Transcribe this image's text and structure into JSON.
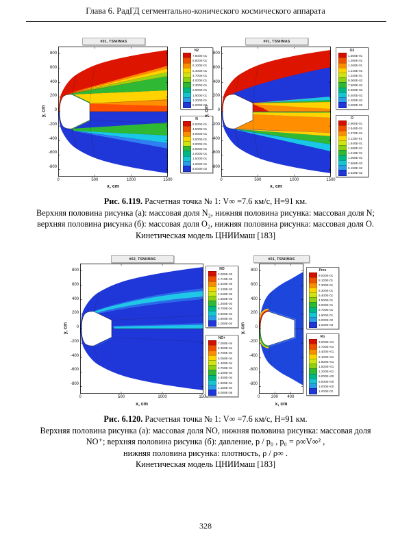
{
  "page": {
    "header_title": "Глава 6. РадГД сегментально-конического космического аппарата",
    "page_number": "328"
  },
  "palette": {
    "rainbow": [
      "#d50f00",
      "#f04f00",
      "#fb8e00",
      "#ffd300",
      "#cfe412",
      "#8ed112",
      "#2fb834",
      "#00b884",
      "#16c6cf",
      "#2a9fe8",
      "#1f36d8"
    ]
  },
  "figures": [
    {
      "caption_label": "Рис. 6.119.",
      "caption_intro": " Расчетная точка № 1: V∞ =7.6 км/с, H=91 км.",
      "caption_body": "Верхняя половина рисунка (а): массовая доля N₂, нижняя половина рисунка: массовая доля N; верхняя половина рисунка (б): массовая доля O₂, нижняя половина рисунка: массовая доля O. Кинетическая модель ЦНИИмаш [183]"
    },
    {
      "caption_label": "Рис. 6.120.",
      "caption_intro": " Расчетная точка № 1: V∞ =7.6 км/с, H=91 км.",
      "caption_body": "Верхняя половина рисунка (а): массовая доля NO, нижняя половина рисунка: массовая доля NO⁺; верхняя половина рисунка (б): давление,  p / p₀ ,  p₀ = ρ∞V∞² ,",
      "caption_body2": "нижняя половина рисунка: плотность,  ρ / ρ∞ .",
      "caption_model": "Кинетическая модель ЦНИИмаш [183]"
    }
  ],
  "chart_data": [
    {
      "type": "heatmap",
      "title": "#01, TSNIIMAS",
      "xlabel": "x, cm",
      "ylabel": "y, cm",
      "xlim": [
        0,
        1500
      ],
      "ylim": [
        -900,
        900
      ],
      "xticks": [
        "0",
        "500",
        "1000",
        "1500"
      ],
      "yticks": [
        "800",
        "600",
        "400",
        "200",
        "0",
        "-200",
        "-400",
        "-600",
        "-800"
      ],
      "upper_quantity": "массовая доля N2",
      "lower_quantity": "массовая доля N",
      "legends": [
        {
          "name": "N2",
          "values": [
            "7.500E-01",
            "6.800E-01",
            "6.100E-01",
            "5.400E-01",
            "4.700E-01",
            "4.000E-01",
            "3.300E-01",
            "2.600E-01",
            "1.900E-01",
            "1.200E-01",
            "5.000E-02"
          ]
        },
        {
          "name": "N",
          "values": [
            "5.000E-01",
            "4.500E-01",
            "4.000E-01",
            "3.500E-01",
            "3.000E-01",
            "2.500E-01",
            "2.000E-01",
            "1.500E-01",
            "1.000E-01",
            "5.000E-02"
          ]
        }
      ]
    },
    {
      "type": "heatmap",
      "title": "#01, TSNIIMAS",
      "xlabel": "x, cm",
      "ylabel": "y, cm",
      "xlim": [
        0,
        1500
      ],
      "ylim": [
        -900,
        900
      ],
      "xticks": [
        "0",
        "500",
        "1000",
        "1500"
      ],
      "yticks": [
        "800",
        "600",
        "400",
        "200",
        "0",
        "-200",
        "-400",
        "-600",
        "-800"
      ],
      "upper_quantity": "массовая доля O2",
      "lower_quantity": "массовая доля O",
      "legends": [
        {
          "name": "O2",
          "values": [
            "1.500E-01",
            "1.380E-01",
            "1.260E-01",
            "1.140E-01",
            "1.020E-01",
            "9.000E-02",
            "7.800E-02",
            "6.600E-02",
            "5.400E-02",
            "4.200E-02",
            "3.000E-02"
          ]
        },
        {
          "name": "O",
          "values": [
            "2.900E-01",
            "2.640E-01",
            "2.370E-01",
            "2.110E-01",
            "1.840E-01",
            "1.580E-01",
            "1.310E-01",
            "1.050E-01",
            "7.860E-02",
            "5.190E-02",
            "2.520E-02"
          ]
        }
      ]
    },
    {
      "type": "heatmap",
      "title": "#02, TSNIIMAS",
      "xlabel": "x, cm",
      "ylabel": "y, cm",
      "xlim": [
        0,
        1500
      ],
      "ylim": [
        -900,
        900
      ],
      "xticks": [
        "0",
        "500",
        "1000",
        "1500"
      ],
      "yticks": [
        "800",
        "600",
        "400",
        "200",
        "0",
        "-200",
        "-400",
        "-600",
        "-800"
      ],
      "upper_quantity": "массовая доля NO",
      "lower_quantity": "массовая доля NO+",
      "legends": [
        {
          "name": "NO",
          "values": [
            "3.000E-03",
            "2.710E-03",
            "2.420E-03",
            "2.130E-03",
            "1.840E-03",
            "1.550E-03",
            "1.260E-03",
            "9.700E-04",
            "6.800E-04",
            "3.900E-04",
            "1.000E-04"
          ]
        },
        {
          "name": "NO+",
          "values": [
            "7.000E-04",
            "6.350E-04",
            "5.700E-04",
            "5.050E-04",
            "4.400E-04",
            "3.750E-04",
            "3.100E-04",
            "2.450E-04",
            "1.800E-04",
            "1.150E-04",
            "5.000E-05"
          ]
        }
      ]
    },
    {
      "type": "heatmap",
      "title": "#01, TSNIIMAS",
      "xlabel": "x, cm",
      "ylabel": "y, cm",
      "xlim": [
        0,
        560
      ],
      "ylim": [
        -900,
        900
      ],
      "xticks": [
        "0",
        "200",
        "400"
      ],
      "yticks": [
        "800",
        "600",
        "400",
        "200",
        "0",
        "-200",
        "-400",
        "-600",
        "-800"
      ],
      "upper_quantity": "давление p/p0",
      "lower_quantity": "плотность ρ/ρ∞",
      "legends": [
        {
          "name": "Pres",
          "values": [
            "9.000E-01",
            "8.100E-01",
            "7.200E-01",
            "6.300E-01",
            "5.400E-01",
            "4.500E-01",
            "3.600E-01",
            "2.700E-01",
            "1.800E-01",
            "9.000E-02",
            "1.000E-03"
          ]
        },
        {
          "name": "Ro",
          "values": [
            "3.000E+01",
            "2.700E+01",
            "2.400E+01",
            "2.100E+01",
            "1.800E+01",
            "1.500E+01",
            "1.200E+01",
            "9.000E+00",
            "6.000E+00",
            "3.000E+00",
            "1.000E-02"
          ]
        }
      ]
    }
  ]
}
